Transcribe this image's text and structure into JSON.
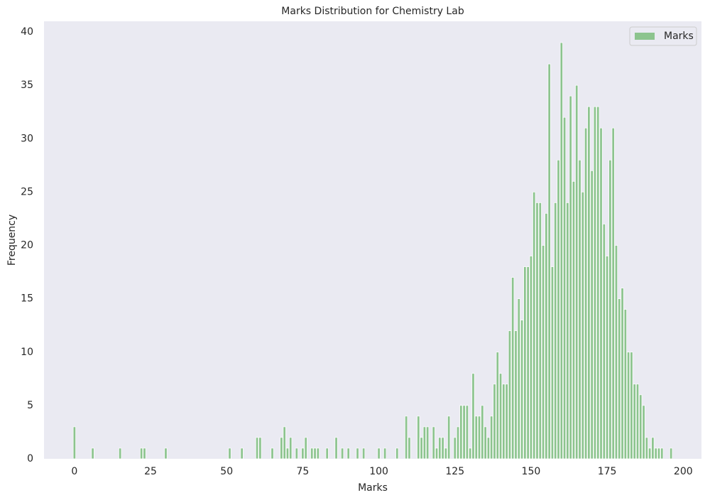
{
  "chart_data": {
    "type": "bar",
    "title": "Marks Distribution for Chemistry Lab",
    "xlabel": "Marks",
    "ylabel": "Frequency",
    "x": [
      0,
      6,
      15,
      22,
      23,
      30,
      51,
      55,
      60,
      61,
      65,
      68,
      69,
      70,
      71,
      73,
      75,
      76,
      78,
      79,
      80,
      83,
      86,
      88,
      90,
      93,
      95,
      100,
      102,
      106,
      109,
      110,
      113,
      114,
      115,
      116,
      118,
      119,
      120,
      121,
      122,
      123,
      125,
      126,
      127,
      128,
      129,
      130,
      131,
      132,
      133,
      134,
      135,
      136,
      137,
      138,
      139,
      140,
      141,
      142,
      143,
      144,
      145,
      146,
      147,
      148,
      149,
      150,
      151,
      152,
      153,
      154,
      155,
      156,
      157,
      158,
      159,
      160,
      161,
      162,
      163,
      164,
      165,
      166,
      167,
      168,
      169,
      170,
      171,
      172,
      173,
      174,
      175,
      176,
      177,
      178,
      179,
      180,
      181,
      182,
      183,
      184,
      185,
      186,
      187,
      188,
      189,
      190,
      191,
      192,
      193,
      196
    ],
    "series": [
      {
        "name": "Marks",
        "color": "#8cc48e",
        "values": [
          3,
          1,
          1,
          1,
          1,
          1,
          1,
          1,
          2,
          2,
          1,
          2,
          3,
          1,
          2,
          1,
          1,
          2,
          1,
          1,
          1,
          1,
          2,
          1,
          1,
          1,
          1,
          1,
          1,
          1,
          4,
          2,
          4,
          2,
          3,
          3,
          3,
          1,
          2,
          2,
          1,
          4,
          2,
          3,
          5,
          5,
          5,
          1,
          8,
          4,
          4,
          5,
          3,
          2,
          4,
          7,
          10,
          8,
          7,
          7,
          12,
          17,
          12,
          15,
          13,
          18,
          18,
          19,
          25,
          24,
          24,
          20,
          23,
          37,
          18,
          24,
          28,
          39,
          32,
          24,
          34,
          26,
          35,
          28,
          25,
          31,
          33,
          27,
          33,
          33,
          31,
          22,
          19,
          28,
          31,
          20,
          15,
          16,
          14,
          10,
          10,
          7,
          7,
          6,
          5,
          2,
          1,
          2,
          1,
          1,
          1,
          1
        ]
      }
    ],
    "xlim": [
      -10,
      206
    ],
    "ylim": [
      0,
      41
    ],
    "xticks": [
      0,
      25,
      50,
      75,
      100,
      125,
      150,
      175,
      200
    ],
    "yticks": [
      0,
      5,
      10,
      15,
      20,
      25,
      30,
      35,
      40
    ],
    "legend": "upper right"
  }
}
